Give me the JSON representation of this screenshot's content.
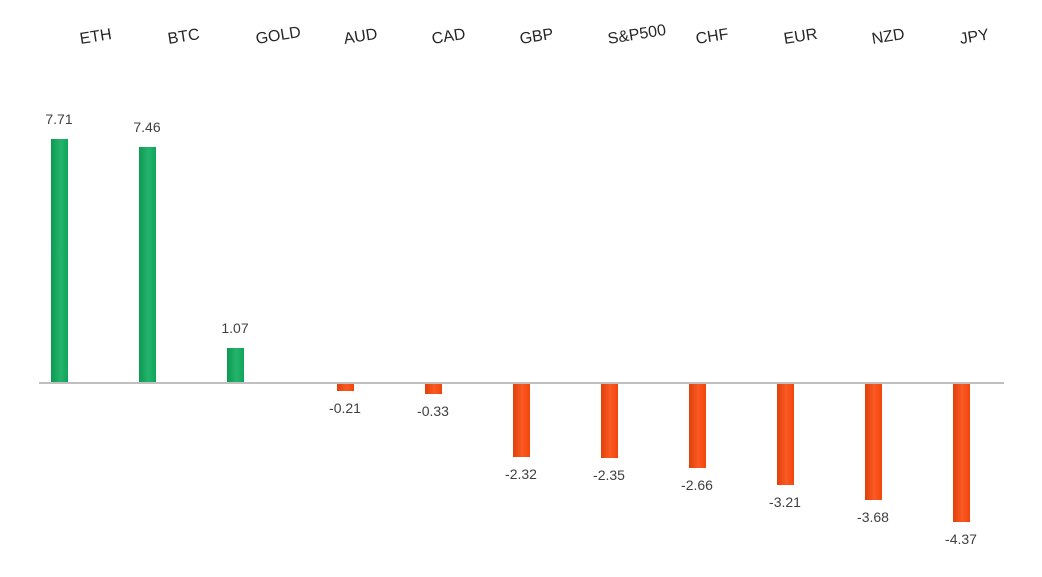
{
  "chart_data": {
    "type": "bar",
    "categories": [
      "ETH",
      "BTC",
      "GOLD",
      "AUD",
      "CAD",
      "GBP",
      "S&P500",
      "CHF",
      "EUR",
      "NZD",
      "JPY"
    ],
    "values": [
      7.71,
      7.46,
      1.07,
      -0.21,
      -0.33,
      -2.32,
      -2.35,
      -2.66,
      -3.21,
      -3.68,
      -4.37
    ],
    "value_labels": [
      "7.71",
      "7.46",
      "1.07",
      "-0.21",
      "-0.33",
      "-2.32",
      "-2.35",
      "-2.66",
      "-3.21",
      "-3.68",
      "-4.37"
    ],
    "title": "",
    "xlabel": "",
    "ylabel": "",
    "ylim": [
      -5,
      8
    ],
    "grid": false,
    "legend": false,
    "baseline": 0,
    "positive_color": "#0DAB5C",
    "negative_color": "#F9470B",
    "axis_line_color": "#BFBFBF",
    "value_label_color": "#404040",
    "category_label_color": "#262626",
    "category_label_rotation_deg": -9,
    "background_color": "#FFFFFF"
  }
}
